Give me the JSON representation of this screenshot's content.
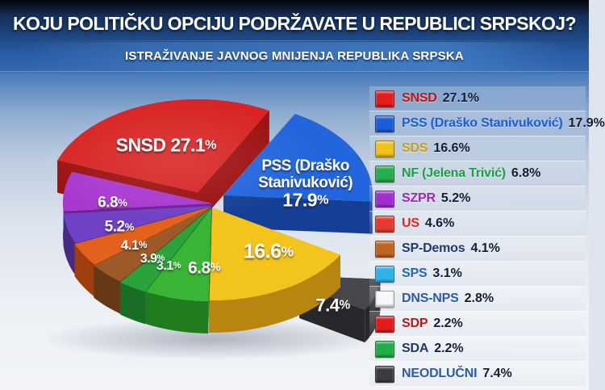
{
  "header": {
    "title": "KOJU POLITIČKU OPCIJU PODRŽAVATE U REPUBLICI SRPSKOJ?",
    "subtitle": "ISTRAŽIVANJE JAVNOG MNIJENJA REPUBLIKA SRPSKA"
  },
  "legend": {
    "items": [
      {
        "name": "SNSD",
        "value": "27.1%",
        "swatch": "#e21d1d",
        "name_color": "#c41414"
      },
      {
        "name": "PSS (Draško Stanivuković)",
        "value": "17.9%",
        "swatch": "#1b5cd8",
        "name_color": "#1b5cd8"
      },
      {
        "name": "SDS",
        "value": "16.6%",
        "swatch": "#f2c31a",
        "name_color": "#d09c12"
      },
      {
        "name": "NF (Jelena Trivić)",
        "value": "6.8%",
        "swatch": "#25ae4d",
        "name_color": "#1e9e47"
      },
      {
        "name": "SZPR",
        "value": "5.2%",
        "swatch": "#a32ccd",
        "name_color": "#9a26c4"
      },
      {
        "name": "US",
        "value": "4.6%",
        "swatch": "#e83a2c",
        "name_color": "#d52a20"
      },
      {
        "name": "SP-Demos",
        "value": "4.1%",
        "swatch": "#c0651f",
        "name_color": "#1d3a6e"
      },
      {
        "name": "SPS",
        "value": "3.1%",
        "swatch": "#2cb3ea",
        "name_color": "#1e66bd"
      },
      {
        "name": "DNS-NPS",
        "value": "2.8%",
        "swatch": "#f7f8f9",
        "name_color": "#2a5aa8"
      },
      {
        "name": "SDP",
        "value": "2.2%",
        "swatch": "#e01c1c",
        "name_color": "#c41414"
      },
      {
        "name": "SDA",
        "value": "2.2%",
        "swatch": "#22ad48",
        "name_color": "#1d3a6e"
      },
      {
        "name": "NEODLUČNI",
        "value": "7.4%",
        "swatch": "#3c3c40",
        "name_color": "#2a5aa8"
      }
    ]
  },
  "chart_data": {
    "type": "pie",
    "title": "KOJU POLITIČKU OPCIJU PODRŽAVATE U REPUBLICI SRPSKOJ?",
    "subtitle": "ISTRAŽIVANJE JAVNOG MNIJENJA REPUBLIKA SRPSKA",
    "unit": "%",
    "legend_position": "right",
    "style": "3d-exploded-pie",
    "slices": [
      {
        "party": "SNSD",
        "value": 27.1,
        "label_lines": [
          "SNSD 27.1%"
        ],
        "top": "#d82424",
        "side": "#9c1010"
      },
      {
        "party": "PSS (Draško Stanivuković)",
        "value": 17.9,
        "label_lines": [
          "PSS (Draško",
          "Stanivuković)",
          "17.9%"
        ],
        "top": "#2265dd",
        "side": "#153f94"
      },
      {
        "party": "NEODLUČNI",
        "value": 7.4,
        "label_lines": [
          "7.4%"
        ],
        "top": "#48484c",
        "side": "#28282c"
      },
      {
        "party": "SDS",
        "value": 16.6,
        "label_lines": [
          "16.6%"
        ],
        "top": "#f3c41c",
        "side": "#b8860e"
      },
      {
        "party": "NF (Jelena Trivić)",
        "value": 6.8,
        "label_lines": [
          "6.8%"
        ],
        "top": "#3ab435",
        "side": "#1f7d20"
      },
      {
        "party": "SPS",
        "value": 3.1,
        "label_lines": [
          "3.1%"
        ],
        "top": "#2aa33c",
        "side": "#176e24"
      },
      {
        "party": "",
        "value": 3.9,
        "label_lines": [
          "3.9%"
        ],
        "top": "#9d5a28",
        "side": "#653816"
      },
      {
        "party": "SP-Demos",
        "value": 4.1,
        "label_lines": [
          "4.1%"
        ],
        "top": "#e2611c",
        "side": "#a03f0e"
      },
      {
        "party": "SZPR",
        "value": 5.2,
        "label_lines": [
          "5.2%"
        ],
        "top": "#6f41c4",
        "side": "#472a85"
      },
      {
        "party": "",
        "value": 6.8,
        "label_lines": [
          "6.8%"
        ],
        "top": "#a838d0",
        "side": "#6f1f8e"
      }
    ]
  }
}
